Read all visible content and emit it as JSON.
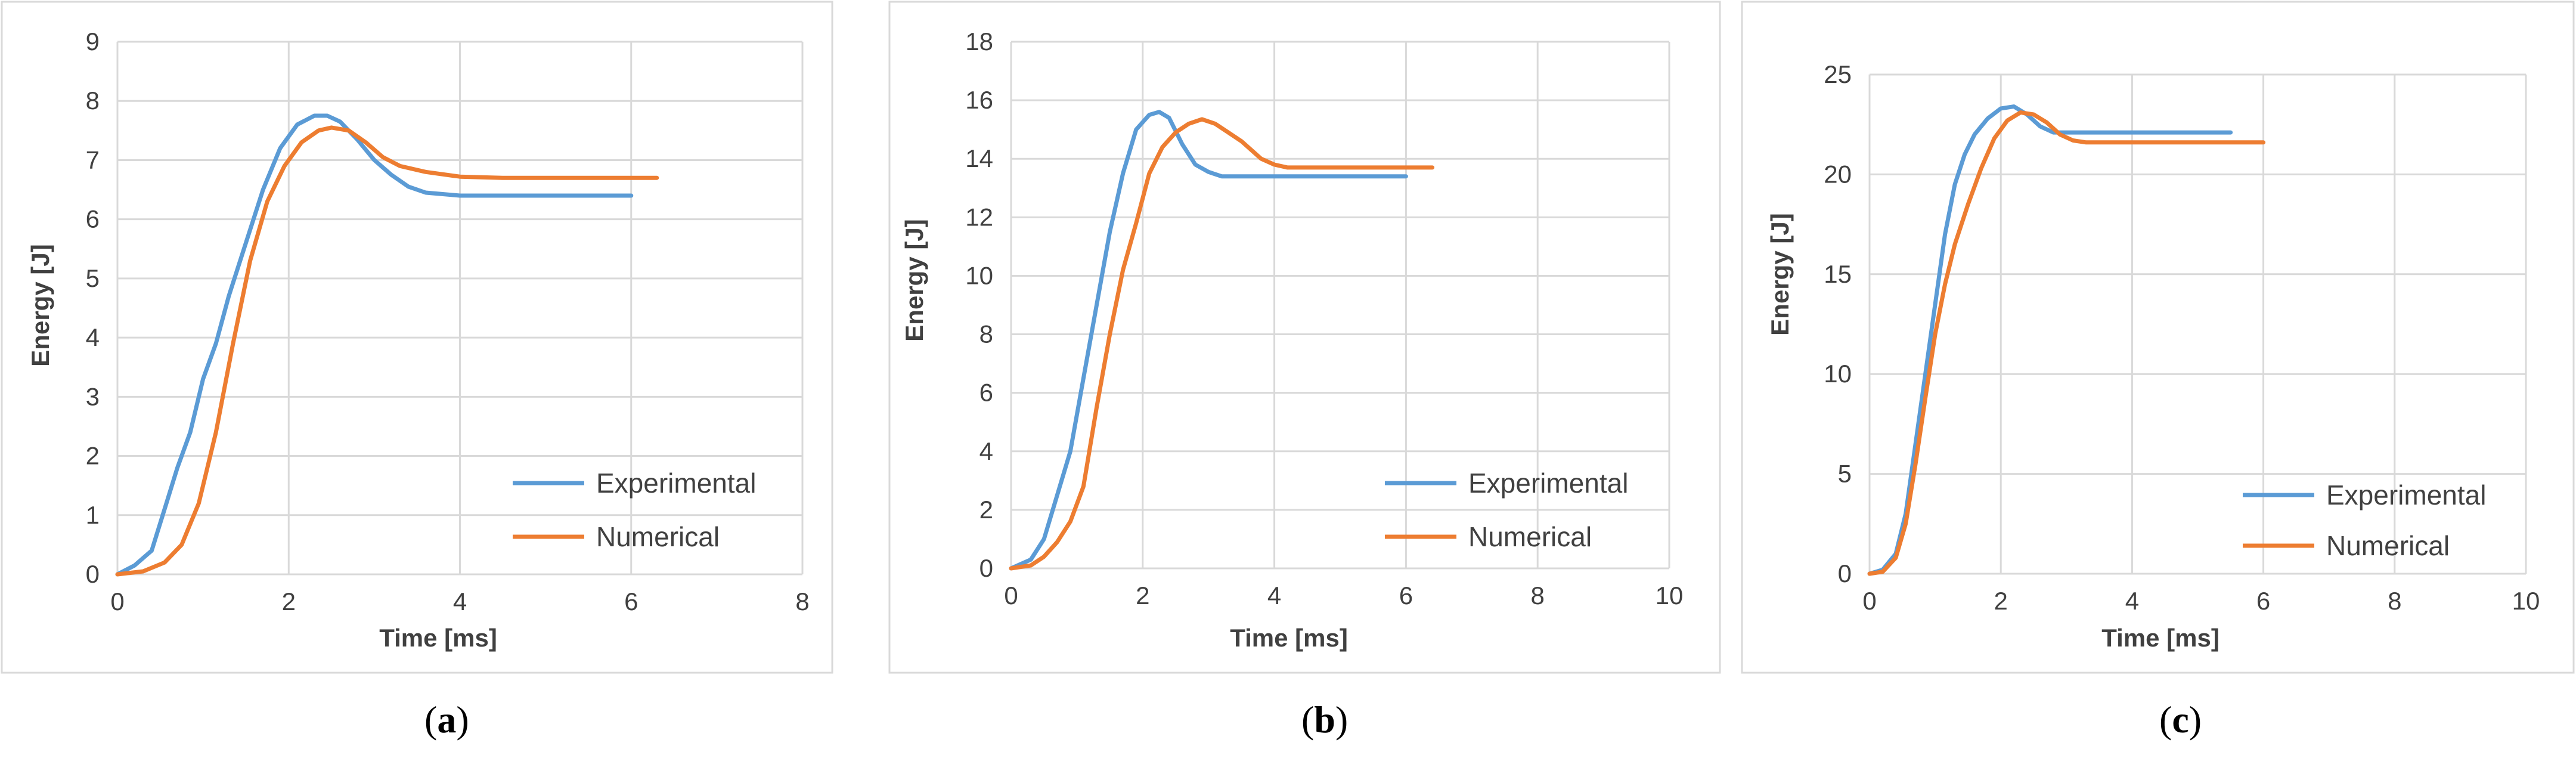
{
  "colors": {
    "experimental": "#5b9bd5",
    "numerical": "#ed7d31"
  },
  "chart_data": [
    {
      "type": "line",
      "sublabel_open": "(",
      "sublabel_letter": "a",
      "sublabel_close": ")",
      "xlabel": "Time [ms]",
      "ylabel": "Energy [J]",
      "xlim": [
        0,
        8
      ],
      "ylim": [
        0,
        9
      ],
      "xticks": [
        0,
        2,
        4,
        6,
        8
      ],
      "yticks": [
        0,
        1,
        2,
        3,
        4,
        5,
        6,
        7,
        8,
        9
      ],
      "legend_position": "bottom-right",
      "series": [
        {
          "name": "Experimental",
          "color_key": "experimental",
          "x": [
            0,
            0.2,
            0.4,
            0.55,
            0.7,
            0.85,
            1.0,
            1.15,
            1.3,
            1.5,
            1.7,
            1.9,
            2.1,
            2.3,
            2.45,
            2.6,
            2.8,
            3.0,
            3.2,
            3.4,
            3.6,
            4.0,
            5.0,
            6.0
          ],
          "y": [
            0,
            0.15,
            0.4,
            1.1,
            1.8,
            2.4,
            3.3,
            3.9,
            4.7,
            5.6,
            6.5,
            7.2,
            7.6,
            7.75,
            7.75,
            7.65,
            7.35,
            7.0,
            6.75,
            6.55,
            6.45,
            6.4,
            6.4,
            6.4
          ]
        },
        {
          "name": "Numerical",
          "color_key": "numerical",
          "x": [
            0,
            0.3,
            0.55,
            0.75,
            0.95,
            1.15,
            1.35,
            1.55,
            1.75,
            1.95,
            2.15,
            2.35,
            2.5,
            2.7,
            2.9,
            3.1,
            3.3,
            3.6,
            4.0,
            4.5,
            5.0,
            6.0,
            6.3
          ],
          "y": [
            0,
            0.05,
            0.2,
            0.5,
            1.2,
            2.4,
            3.9,
            5.3,
            6.3,
            6.9,
            7.3,
            7.5,
            7.55,
            7.5,
            7.3,
            7.05,
            6.9,
            6.8,
            6.72,
            6.7,
            6.7,
            6.7,
            6.7
          ]
        }
      ]
    },
    {
      "type": "line",
      "sublabel_open": "(",
      "sublabel_letter": "b",
      "sublabel_close": ")",
      "xlabel": "Time [ms]",
      "ylabel": "Energy [J]",
      "xlim": [
        0,
        10
      ],
      "ylim": [
        0,
        18
      ],
      "xticks": [
        0,
        2,
        4,
        6,
        8,
        10
      ],
      "yticks": [
        0,
        2,
        4,
        6,
        8,
        10,
        12,
        14,
        16,
        18
      ],
      "legend_position": "bottom-right",
      "series": [
        {
          "name": "Experimental",
          "color_key": "experimental",
          "x": [
            0,
            0.3,
            0.5,
            0.7,
            0.9,
            1.1,
            1.3,
            1.5,
            1.7,
            1.9,
            2.1,
            2.25,
            2.4,
            2.6,
            2.8,
            3.0,
            3.2,
            3.5,
            4.0,
            5.0,
            6.0
          ],
          "y": [
            0,
            0.3,
            1.0,
            2.5,
            4.0,
            6.5,
            9.0,
            11.5,
            13.5,
            15.0,
            15.5,
            15.6,
            15.4,
            14.5,
            13.8,
            13.55,
            13.4,
            13.4,
            13.4,
            13.4,
            13.4
          ]
        },
        {
          "name": "Numerical",
          "color_key": "numerical",
          "x": [
            0,
            0.3,
            0.5,
            0.7,
            0.9,
            1.1,
            1.3,
            1.5,
            1.7,
            1.9,
            2.1,
            2.3,
            2.5,
            2.7,
            2.9,
            3.1,
            3.3,
            3.5,
            3.8,
            4.0,
            4.2,
            4.5,
            5.0,
            6.0,
            6.4
          ],
          "y": [
            0,
            0.1,
            0.4,
            0.9,
            1.6,
            2.8,
            5.5,
            8.0,
            10.2,
            11.8,
            13.5,
            14.4,
            14.9,
            15.2,
            15.35,
            15.2,
            14.9,
            14.6,
            14.0,
            13.8,
            13.7,
            13.7,
            13.7,
            13.7,
            13.7
          ]
        }
      ]
    },
    {
      "type": "line",
      "sublabel_open": "(",
      "sublabel_letter": "c",
      "sublabel_close": ")",
      "xlabel": "Time [ms]",
      "ylabel": "Energy [J]",
      "xlim": [
        0,
        10
      ],
      "ylim": [
        0,
        25
      ],
      "xticks": [
        0,
        2,
        4,
        6,
        8,
        10
      ],
      "yticks": [
        0,
        5,
        10,
        15,
        20,
        25
      ],
      "legend_position": "bottom-right",
      "series": [
        {
          "name": "Experimental",
          "color_key": "experimental",
          "x": [
            0,
            0.2,
            0.4,
            0.55,
            0.7,
            0.85,
            1.0,
            1.15,
            1.3,
            1.45,
            1.6,
            1.8,
            2.0,
            2.2,
            2.4,
            2.6,
            2.8,
            3.0,
            4.0,
            5.5
          ],
          "y": [
            0,
            0.2,
            1.0,
            3.0,
            6.5,
            10.0,
            13.5,
            17.0,
            19.5,
            21.0,
            22.0,
            22.8,
            23.3,
            23.4,
            23.0,
            22.4,
            22.1,
            22.1,
            22.1,
            22.1
          ]
        },
        {
          "name": "Numerical",
          "color_key": "numerical",
          "x": [
            0,
            0.2,
            0.4,
            0.55,
            0.7,
            0.85,
            1.0,
            1.15,
            1.3,
            1.5,
            1.7,
            1.9,
            2.1,
            2.3,
            2.5,
            2.7,
            2.9,
            3.1,
            3.3,
            4.0,
            5.0,
            6.0
          ],
          "y": [
            0,
            0.1,
            0.8,
            2.5,
            5.5,
            8.8,
            12.0,
            14.5,
            16.5,
            18.5,
            20.3,
            21.8,
            22.7,
            23.1,
            23.0,
            22.6,
            22.0,
            21.7,
            21.6,
            21.6,
            21.6,
            21.6
          ]
        }
      ]
    }
  ]
}
